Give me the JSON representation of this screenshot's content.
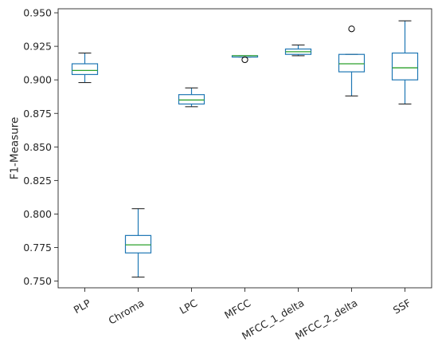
{
  "chart_data": {
    "type": "box",
    "title": "",
    "xlabel": "",
    "ylabel": "F1-Measure",
    "ylim": [
      0.745,
      0.953
    ],
    "yticks": [
      "0.750",
      "0.775",
      "0.800",
      "0.825",
      "0.850",
      "0.875",
      "0.900",
      "0.925",
      "0.950"
    ],
    "grid": false,
    "legend": "none",
    "colors": {
      "box": "#1f77b4",
      "median": "#2ca02c",
      "frame": "#262626",
      "flier": "#000000"
    },
    "categories": [
      "PLP",
      "Chroma",
      "LPC",
      "MFCC",
      "MFCC_1_delta",
      "MFCC_2_delta",
      "SSF"
    ],
    "boxes": [
      {
        "label": "PLP",
        "whislo": 0.898,
        "q1": 0.904,
        "med": 0.907,
        "q3": 0.912,
        "whishi": 0.92,
        "fliers": []
      },
      {
        "label": "Chroma",
        "whislo": 0.753,
        "q1": 0.771,
        "med": 0.777,
        "q3": 0.784,
        "whishi": 0.804,
        "fliers": []
      },
      {
        "label": "LPC",
        "whislo": 0.88,
        "q1": 0.882,
        "med": 0.885,
        "q3": 0.889,
        "whishi": 0.894,
        "fliers": []
      },
      {
        "label": "MFCC",
        "whislo": 0.917,
        "q1": 0.917,
        "med": 0.918,
        "q3": 0.918,
        "whishi": 0.918,
        "fliers": [
          0.915
        ]
      },
      {
        "label": "MFCC_1_delta",
        "whislo": 0.918,
        "q1": 0.919,
        "med": 0.921,
        "q3": 0.923,
        "whishi": 0.926,
        "fliers": []
      },
      {
        "label": "MFCC_2_delta",
        "whislo": 0.888,
        "q1": 0.906,
        "med": 0.912,
        "q3": 0.919,
        "whishi": 0.919,
        "fliers": [
          0.938
        ]
      },
      {
        "label": "SSF",
        "whislo": 0.882,
        "q1": 0.9,
        "med": 0.909,
        "q3": 0.92,
        "whishi": 0.944,
        "fliers": []
      }
    ]
  }
}
